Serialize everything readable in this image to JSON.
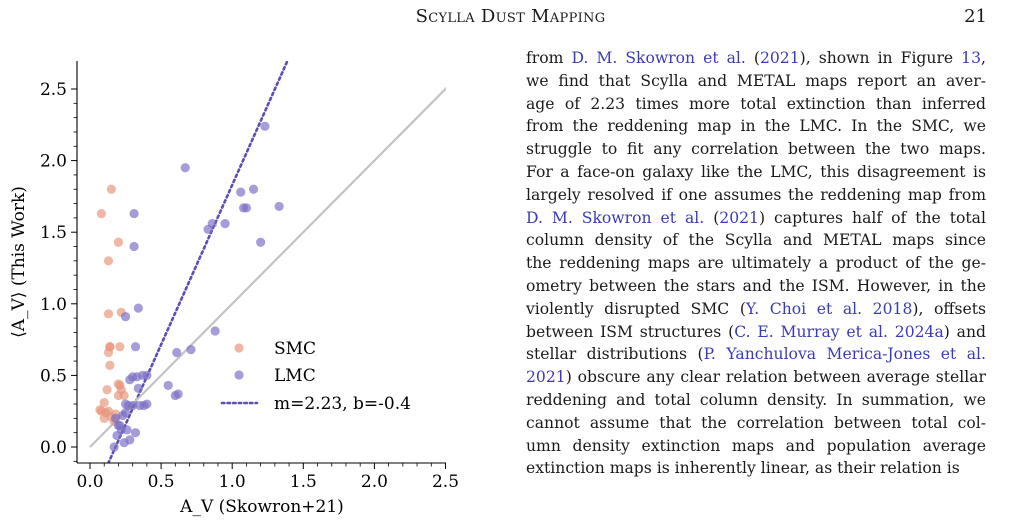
{
  "header": {
    "title": "Scylla Dust Mapping",
    "page_number": "21"
  },
  "colors": {
    "smc": "#e8957a",
    "lmc": "#7a6fc4",
    "fit": "#5b4fb0",
    "one_to_one": "#c3c3c3",
    "link": "#3b3bb8"
  },
  "chart_data": {
    "type": "scatter",
    "xlabel": "A_V (Skowron+21)",
    "ylabel": "⟨A_V⟩ (This Work)",
    "xlim": [
      0.0,
      2.5
    ],
    "ylim": [
      -0.1,
      2.5
    ],
    "x_ticks": [
      "0.0",
      "0.5",
      "1.0",
      "1.5",
      "2.0",
      "2.5"
    ],
    "y_ticks": [
      "0.0",
      "0.5",
      "1.0",
      "1.5",
      "2.0",
      "2.5"
    ],
    "legend_position": "lower-right",
    "grid": false,
    "series": [
      {
        "name": "SMC",
        "kind": "points",
        "color": "#e8957a",
        "x": [
          0.15,
          0.08,
          0.13,
          0.2,
          0.13,
          0.22,
          0.14,
          0.14,
          0.21,
          0.13,
          0.14,
          0.12,
          0.2,
          0.21,
          0.22,
          0.1,
          0.08,
          0.11,
          0.15,
          0.18,
          0.24,
          0.2,
          0.17,
          0.1,
          0.07,
          0.13
        ],
        "y": [
          1.8,
          1.63,
          1.3,
          1.43,
          0.93,
          0.94,
          0.7,
          0.7,
          0.7,
          0.66,
          0.57,
          0.4,
          0.44,
          0.43,
          0.4,
          0.31,
          0.25,
          0.24,
          0.21,
          0.23,
          0.36,
          0.36,
          0.18,
          0.2,
          0.26,
          0.25
        ]
      },
      {
        "name": "LMC",
        "kind": "points",
        "color": "#7a6fc4",
        "x": [
          0.67,
          1.23,
          0.31,
          0.31,
          0.83,
          0.95,
          0.86,
          1.06,
          1.1,
          1.15,
          1.33,
          1.08,
          1.2,
          0.34,
          0.25,
          0.71,
          0.61,
          0.32,
          0.37,
          0.4,
          0.3,
          0.33,
          0.34,
          0.28,
          0.55,
          0.62,
          0.6,
          0.88,
          0.25,
          0.27,
          0.3,
          0.35,
          0.38,
          0.4,
          0.21,
          0.23,
          0.25,
          0.18,
          0.2,
          0.22,
          0.26,
          0.32,
          0.28,
          0.19,
          0.24,
          0.17
        ],
        "y": [
          1.95,
          2.24,
          1.63,
          1.4,
          1.52,
          1.56,
          1.56,
          1.78,
          1.67,
          1.8,
          1.68,
          1.67,
          1.43,
          0.97,
          0.91,
          0.68,
          0.66,
          0.7,
          0.5,
          0.5,
          0.49,
          0.49,
          0.41,
          0.47,
          0.43,
          0.37,
          0.36,
          0.81,
          0.3,
          0.29,
          0.29,
          0.29,
          0.29,
          0.3,
          0.15,
          0.22,
          0.24,
          0.2,
          0.15,
          0.12,
          0.12,
          0.1,
          0.05,
          0.08,
          0.03,
          0.0
        ]
      },
      {
        "name": "m=2.23, b=-0.4",
        "kind": "line",
        "style": "dotted",
        "color": "#5b4fb0",
        "slope": 2.23,
        "intercept": -0.4
      },
      {
        "kind": "line",
        "style": "solid",
        "color": "#c3c3c3",
        "slope": 1.0,
        "intercept": 0.0
      }
    ]
  },
  "body_lines": [
    [
      {
        "t": "from ",
        "c": 0
      },
      {
        "t": "D. M. Skowron et al.",
        "c": 1
      },
      {
        "t": " (",
        "c": 0
      },
      {
        "t": "2021",
        "c": 1
      },
      {
        "t": "), shown in Figure ",
        "c": 0
      },
      {
        "t": "13",
        "c": 1
      },
      {
        "t": ",",
        "c": 0
      }
    ],
    [
      {
        "t": "we find that Scylla and METAL maps report an aver-",
        "c": 0
      }
    ],
    [
      {
        "t": "age of 2.23 times more total extinction than inferred",
        "c": 0
      }
    ],
    [
      {
        "t": "from the reddening map in the LMC. In the SMC, we",
        "c": 0
      }
    ],
    [
      {
        "t": "struggle to fit any correlation between the two maps.",
        "c": 0
      }
    ],
    [
      {
        "t": "For a face-on galaxy like the LMC, this disagreement is",
        "c": 0
      }
    ],
    [
      {
        "t": "largely resolved if one assumes the reddening map from",
        "c": 0
      }
    ],
    [
      {
        "t": "D. M. Skowron et al.",
        "c": 1
      },
      {
        "t": " (",
        "c": 0
      },
      {
        "t": "2021",
        "c": 1
      },
      {
        "t": ") captures half of the total",
        "c": 0
      }
    ],
    [
      {
        "t": "column density of the Scylla and METAL maps since",
        "c": 0
      }
    ],
    [
      {
        "t": "the reddening maps are ultimately a product of the ge-",
        "c": 0
      }
    ],
    [
      {
        "t": "ometry between the stars and the ISM. However, in the",
        "c": 0
      }
    ],
    [
      {
        "t": "violently disrupted SMC (",
        "c": 0
      },
      {
        "t": "Y. Choi et al. 2018",
        "c": 1
      },
      {
        "t": "), offsets",
        "c": 0
      }
    ],
    [
      {
        "t": "between ISM structures (",
        "c": 0
      },
      {
        "t": "C. E. Murray et al. 2024a",
        "c": 1
      },
      {
        "t": ") and",
        "c": 0
      }
    ],
    [
      {
        "t": "stellar distributions (",
        "c": 0
      },
      {
        "t": "P. Yanchulova Merica-Jones et al.",
        "c": 1
      }
    ],
    [
      {
        "t": "2021",
        "c": 1
      },
      {
        "t": ") obscure any clear relation between average stellar",
        "c": 0
      }
    ],
    [
      {
        "t": "reddening and total column density. In summation, we",
        "c": 0
      }
    ],
    [
      {
        "t": "cannot assume that the correlation between total col-",
        "c": 0
      }
    ],
    [
      {
        "t": "umn density extinction maps and population average",
        "c": 0
      }
    ],
    [
      {
        "t": "extinction maps is inherently linear, as their relation is",
        "c": 0
      }
    ]
  ]
}
